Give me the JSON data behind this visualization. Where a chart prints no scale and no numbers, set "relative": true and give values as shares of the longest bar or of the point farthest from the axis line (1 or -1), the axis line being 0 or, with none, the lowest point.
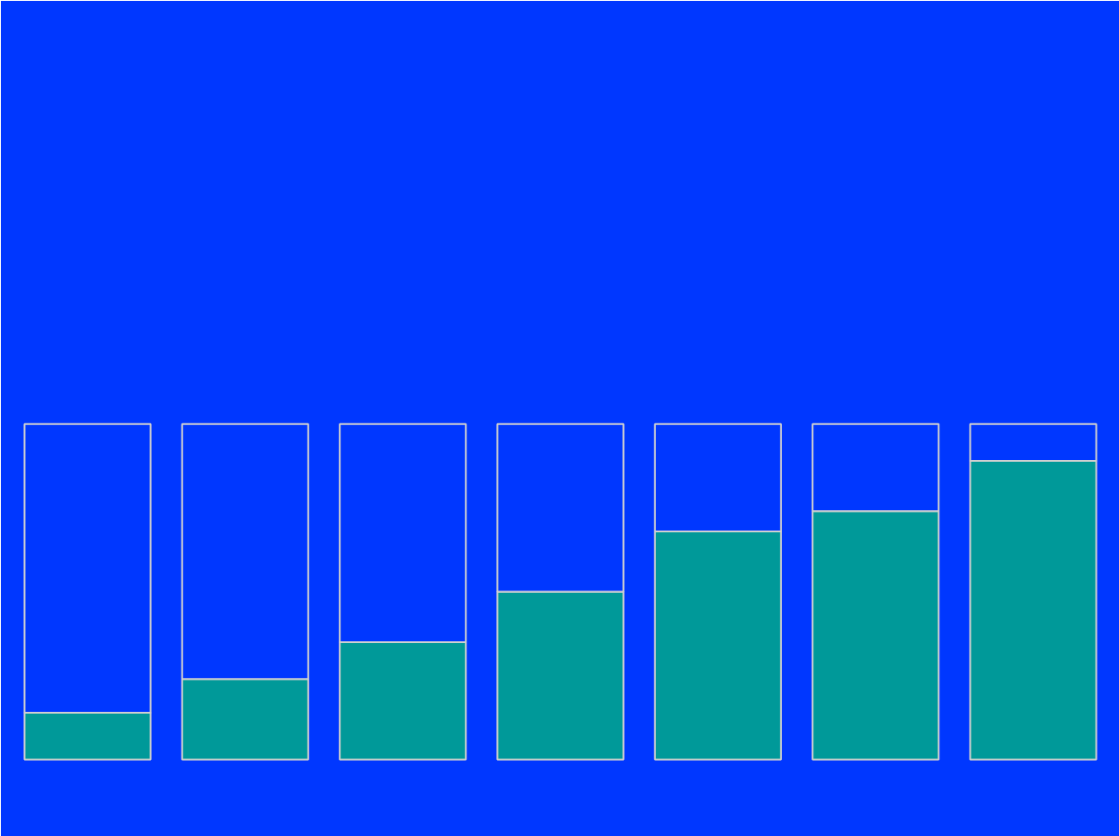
{
  "chart_data": {
    "type": "bar",
    "relative": true,
    "stacked": true,
    "categories": [
      null,
      null,
      null,
      null,
      null,
      null,
      null
    ],
    "series": [
      {
        "color": "#009999",
        "values": [
          0.14,
          0.24,
          0.35,
          0.5,
          0.68,
          0.74,
          0.89
        ]
      },
      {
        "color": "#0037ff",
        "values": [
          0.86,
          0.76,
          0.65,
          0.5,
          0.32,
          0.26,
          0.11
        ]
      }
    ],
    "grid": false
  }
}
